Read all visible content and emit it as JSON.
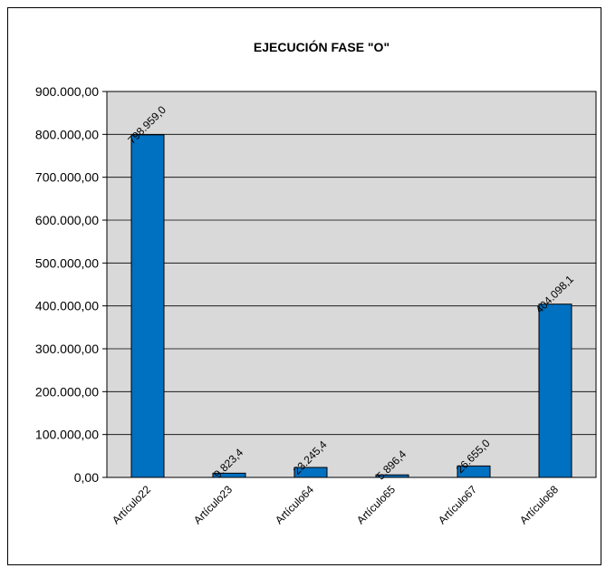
{
  "chart_data": {
    "type": "bar",
    "title": "EJECUCIÓN FASE \"O\"",
    "xlabel": "",
    "ylabel": "",
    "categories": [
      "Artículo22",
      "Artículo23",
      "Artículo64",
      "Artículo65",
      "Artículo67",
      "Artículo68"
    ],
    "values": [
      798959.0,
      9823.4,
      23245.4,
      5896.4,
      26655.0,
      404098.1
    ],
    "data_labels": [
      "798.959,0",
      "9.823,4",
      "23.245,4",
      "5.896,4",
      "26.655,0",
      "404.098,1"
    ],
    "ylim": [
      0,
      900000
    ],
    "yticks": [
      0,
      100000,
      200000,
      300000,
      400000,
      500000,
      600000,
      700000,
      800000,
      900000
    ],
    "ytick_labels": [
      "0,00",
      "100.000,00",
      "200.000,00",
      "300.000,00",
      "400.000,00",
      "500.000,00",
      "600.000,00",
      "700.000,00",
      "800.000,00",
      "900.000,00"
    ],
    "grid": true,
    "legend": "none",
    "colors": {
      "bar": "#0070C0",
      "plot_background": "#D9D9D9",
      "gridline": "#000000"
    }
  }
}
